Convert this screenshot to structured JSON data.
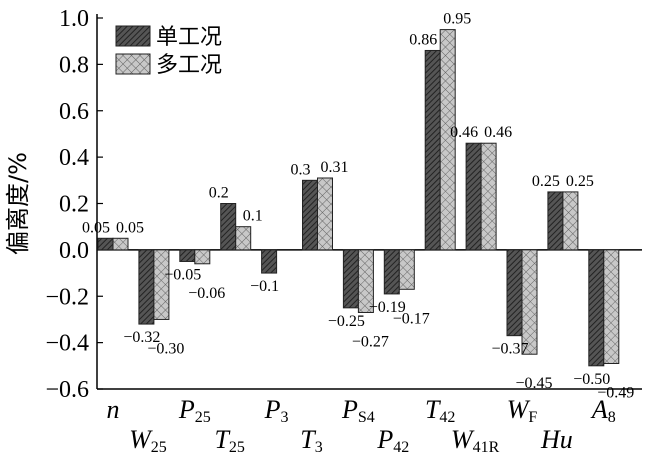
{
  "chart_data": {
    "type": "bar",
    "ylabel": "偏离度/%",
    "ylim": [
      -0.6,
      1.0
    ],
    "yticks": [
      "-0.6",
      "-0.4",
      "-0.2",
      "0.0",
      "0.2",
      "0.4",
      "0.6",
      "0.8",
      "1.0"
    ],
    "yticks_display": [
      "−0.6",
      "−0.4",
      "−0.2",
      "0.0",
      "0.2",
      "0.4",
      "0.6",
      "0.8",
      "1.0"
    ],
    "categories": [
      {
        "main": "n",
        "sub": ""
      },
      {
        "main": "W",
        "sub": "25"
      },
      {
        "main": "P",
        "sub": "25"
      },
      {
        "main": "T",
        "sub": "25"
      },
      {
        "main": "P",
        "sub": "3"
      },
      {
        "main": "T",
        "sub": "3"
      },
      {
        "main": "P",
        "sub": "S4"
      },
      {
        "main": "P",
        "sub": "42"
      },
      {
        "main": "T",
        "sub": "42"
      },
      {
        "main": "W",
        "sub": "41R"
      },
      {
        "main": "W",
        "sub": "F"
      },
      {
        "main": "Hu",
        "sub": ""
      },
      {
        "main": "A",
        "sub": "8"
      }
    ],
    "legend": {
      "placement": "top-left"
    },
    "series": [
      {
        "name": "单工况",
        "color": "#333333",
        "values": [
          0.05,
          -0.32,
          -0.05,
          0.2,
          -0.1,
          0.3,
          -0.25,
          -0.19,
          0.86,
          0.46,
          -0.37,
          0.25,
          -0.5
        ],
        "labels": [
          "0.05",
          "−0.32",
          "−0.05",
          "0.2",
          "−0.1",
          "0.3",
          "−0.25",
          "−0.19",
          "0.86",
          "0.46",
          "−0.37",
          "0.25",
          "−0.50"
        ]
      },
      {
        "name": "多工况",
        "color": "#bbbbbb",
        "values": [
          0.05,
          -0.3,
          -0.06,
          0.1,
          null,
          0.31,
          -0.27,
          -0.17,
          0.95,
          0.46,
          -0.45,
          0.25,
          -0.49
        ],
        "labels": [
          "0.05",
          "−0.30",
          "−0.06",
          "0.1",
          "",
          "0.31",
          "−0.27",
          "−0.17",
          "0.95",
          "0.46",
          "−0.45",
          "0.25",
          "−0.49"
        ]
      }
    ]
  }
}
